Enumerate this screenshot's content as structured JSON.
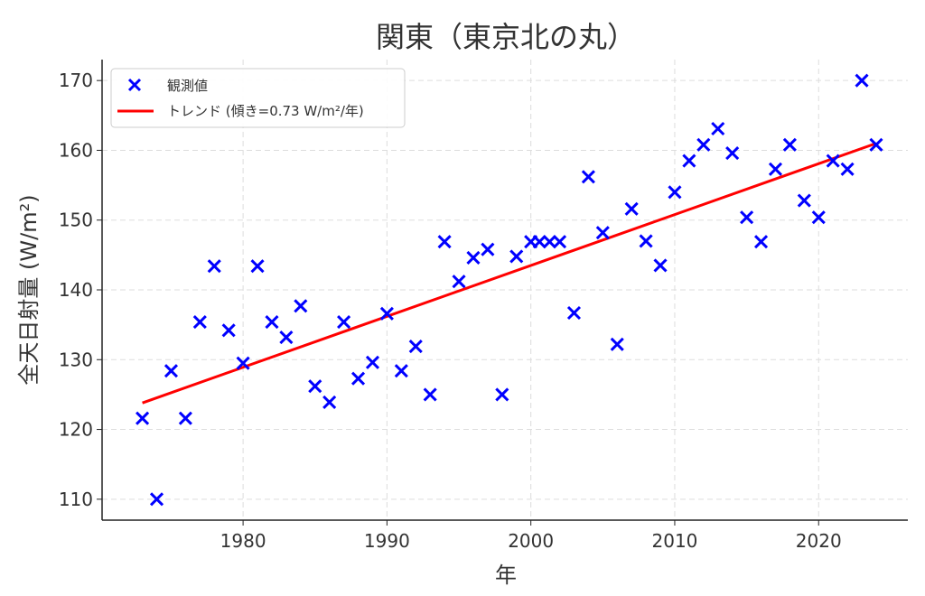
{
  "chart_data": {
    "type": "scatter",
    "title": "関東（東京北の丸）",
    "xlabel": "年",
    "ylabel": "全天日射量 (W/m²)",
    "xlim": [
      1970.2,
      2026.2
    ],
    "ylim": [
      107,
      173
    ],
    "xticks": [
      1980,
      1990,
      2000,
      2010,
      2020
    ],
    "yticks": [
      110,
      120,
      130,
      140,
      150,
      160,
      170
    ],
    "grid": true,
    "legend_position": "top-left",
    "series": [
      {
        "name": "観測値",
        "type": "scatter",
        "color": "#0000ff",
        "marker": "x",
        "x": [
          1973,
          1974,
          1975,
          1976,
          1977,
          1978,
          1979,
          1980,
          1981,
          1982,
          1983,
          1984,
          1985,
          1986,
          1987,
          1988,
          1989,
          1990,
          1991,
          1992,
          1993,
          1994,
          1995,
          1996,
          1997,
          1998,
          1999,
          2000,
          2000.6,
          2001.3,
          2002,
          2003,
          2004,
          2005,
          2006,
          2007,
          2008,
          2009,
          2010,
          2011,
          2012,
          2013,
          2014,
          2015,
          2016,
          2017,
          2018,
          2019,
          2020,
          2021,
          2022,
          2023,
          2024
        ],
        "y": [
          121.6,
          110,
          128.4,
          121.6,
          135.4,
          143.4,
          134.2,
          129.5,
          143.4,
          135.4,
          133.2,
          137.7,
          126.2,
          123.9,
          135.4,
          127.3,
          129.6,
          136.6,
          128.4,
          131.9,
          125,
          146.9,
          141.2,
          144.6,
          145.8,
          125,
          144.8,
          146.9,
          146.9,
          146.9,
          146.9,
          136.7,
          156.2,
          148.2,
          132.2,
          151.6,
          147,
          143.5,
          154,
          158.5,
          160.8,
          163.1,
          159.6,
          150.4,
          146.9,
          157.3,
          160.8,
          152.8,
          150.4,
          158.5,
          157.3,
          170,
          160.8
        ]
      },
      {
        "name": "トレンド (傾き=0.73 W/m²/年)",
        "type": "line",
        "color": "#ff0000",
        "x": [
          1973,
          2024
        ],
        "y": [
          123.8,
          161
        ]
      }
    ]
  }
}
